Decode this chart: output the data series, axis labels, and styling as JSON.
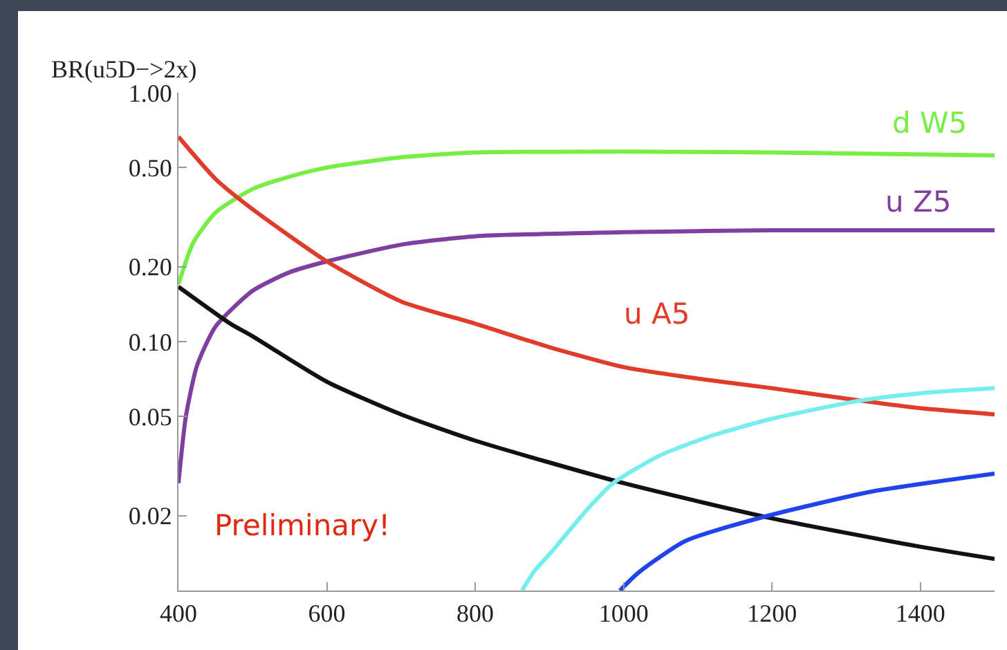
{
  "chart_data": {
    "type": "line",
    "ylabel": "BR(u5D−>2x)",
    "log": "y",
    "xlim": [
      400,
      1500
    ],
    "xticks": [
      400,
      600,
      800,
      1000,
      1200,
      1400
    ],
    "ylim": [
      0.01,
      1
    ],
    "yticks": [
      {
        "value": 1,
        "label": "1.00"
      },
      {
        "value": 0.5,
        "label": "0.50"
      },
      {
        "value": 0.2,
        "label": "0.20"
      },
      {
        "value": 0.1,
        "label": "0.10"
      },
      0.05,
      0.02
    ],
    "grid": false,
    "legend": false,
    "marker": "none",
    "line_style": "solid",
    "annotations": [
      "Preliminary!"
    ],
    "series": [
      {
        "name": "d W5",
        "color": "#77ee44",
        "x": [
          400,
          420,
          450,
          500,
          550,
          600,
          700,
          800,
          1000,
          1200,
          1500
        ],
        "values": [
          0.17,
          0.25,
          0.33,
          0.41,
          0.46,
          0.5,
          0.55,
          0.575,
          0.58,
          0.575,
          0.56
        ]
      },
      {
        "name": "u Z5",
        "color": "#7f3f9f",
        "x": [
          400,
          410,
          425,
          450,
          500,
          550,
          600,
          700,
          800,
          1000,
          1200,
          1500
        ],
        "values": [
          0.027,
          0.05,
          0.08,
          0.115,
          0.16,
          0.19,
          0.21,
          0.245,
          0.265,
          0.275,
          0.28,
          0.28
        ]
      },
      {
        "name": "u A5",
        "color": "#e03c2c",
        "x": [
          400,
          450,
          500,
          600,
          700,
          800,
          900,
          1000,
          1100,
          1200,
          1300,
          1400,
          1500
        ],
        "values": [
          0.665,
          0.45,
          0.34,
          0.21,
          0.145,
          0.118,
          0.095,
          0.079,
          0.071,
          0.065,
          0.059,
          0.054,
          0.051
        ]
      },
      {
        "color": "#111111",
        "x": [
          400,
          470,
          500,
          600,
          700,
          800,
          1000,
          1200,
          1400,
          1500
        ],
        "values": [
          0.166,
          0.118,
          0.105,
          0.069,
          0.051,
          0.04,
          0.027,
          0.0195,
          0.015,
          0.0134
        ]
      },
      {
        "color": "#77eeee",
        "x": [
          863,
          880,
          903,
          950,
          986,
          1050,
          1120,
          1200,
          1320,
          1400,
          1500
        ],
        "values": [
          0.01,
          0.012,
          0.0143,
          0.021,
          0.027,
          0.035,
          0.042,
          0.049,
          0.058,
          0.062,
          0.065
        ]
      },
      {
        "color": "#1f44ee",
        "x": [
          995,
          1020,
          1083,
          1187,
          1335,
          1500
        ],
        "values": [
          0.01,
          0.0118,
          0.0158,
          0.0197,
          0.025,
          0.0295
        ]
      }
    ]
  }
}
